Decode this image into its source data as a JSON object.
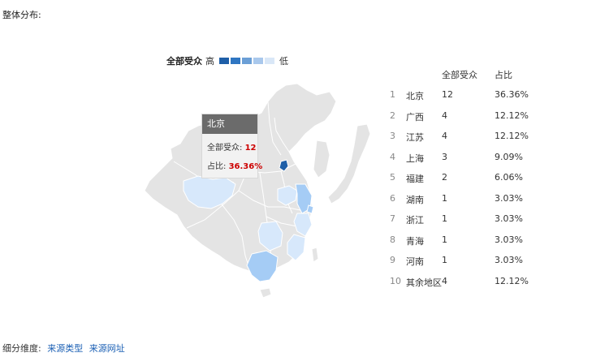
{
  "section_title": "整体分布:",
  "legend": {
    "title": "全部受众",
    "high": "高",
    "low": "低",
    "colors": [
      "#1f5fa8",
      "#2f76c2",
      "#6b9fd6",
      "#a9c8ec",
      "#d9e7f7"
    ]
  },
  "tooltip": {
    "region": "北京",
    "count_label": "全部受众:",
    "count_value": "12",
    "share_label": "占比:",
    "share_value": "36.36%"
  },
  "table": {
    "headers": {
      "count": "全部受众",
      "share": "占比"
    },
    "rows": [
      {
        "idx": "1",
        "name": "北京",
        "count": "12",
        "share": "36.36%"
      },
      {
        "idx": "2",
        "name": "广西",
        "count": "4",
        "share": "12.12%"
      },
      {
        "idx": "3",
        "name": "江苏",
        "count": "4",
        "share": "12.12%"
      },
      {
        "idx": "4",
        "name": "上海",
        "count": "3",
        "share": "9.09%"
      },
      {
        "idx": "5",
        "name": "福建",
        "count": "2",
        "share": "6.06%"
      },
      {
        "idx": "6",
        "name": "湖南",
        "count": "1",
        "share": "3.03%"
      },
      {
        "idx": "7",
        "name": "浙江",
        "count": "1",
        "share": "3.03%"
      },
      {
        "idx": "8",
        "name": "青海",
        "count": "1",
        "share": "3.03%"
      },
      {
        "idx": "9",
        "name": "河南",
        "count": "1",
        "share": "3.03%"
      },
      {
        "idx": "10",
        "name": "其余地区",
        "count": "4",
        "share": "12.12%"
      }
    ]
  },
  "footer": {
    "label": "细分维度:",
    "links": [
      "来源类型",
      "来源网址"
    ]
  },
  "map_colors": {
    "base": "#e4e4e4",
    "border": "#ffffff",
    "light": "#d7e8fb",
    "medium": "#b4d3f6",
    "strong": "#a5ccf5",
    "dark": "#1f5fa8"
  }
}
